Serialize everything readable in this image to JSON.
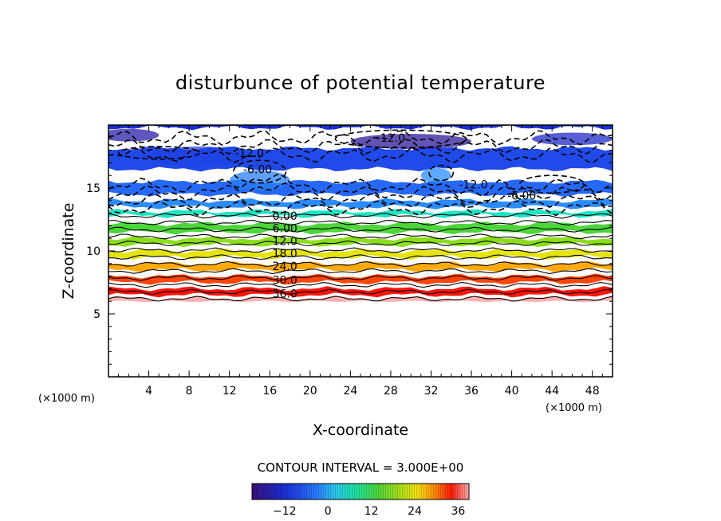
{
  "chart_data": {
    "type": "heatmap",
    "title": "disturbunce of potential temperature",
    "xlabel": "X-coordinate",
    "ylabel": "Z-coordinate",
    "x_unit": "(×1000 m)",
    "z_unit": "(×1000 m)",
    "xlim": [
      0,
      50
    ],
    "ylim": [
      0,
      20
    ],
    "x_ticks": [
      4,
      8,
      12,
      16,
      20,
      24,
      28,
      32,
      36,
      40,
      44,
      48
    ],
    "y_ticks": [
      5,
      10,
      15
    ],
    "contour_interval_label": "CONTOUR INTERVAL = 3.000E+00",
    "contour_interval": 3.0,
    "colorbar": {
      "min": -21,
      "max": 39,
      "ticks": [
        -12,
        0,
        12,
        24,
        36
      ]
    },
    "layers": [
      {
        "z": 6.0,
        "value": 39
      },
      {
        "z": 6.5,
        "value": 36
      },
      {
        "z": 7.5,
        "value": 30
      },
      {
        "z": 8.5,
        "value": 24
      },
      {
        "z": 9.5,
        "value": 18
      },
      {
        "z": 10.5,
        "value": 12
      },
      {
        "z": 11.5,
        "value": 6
      },
      {
        "z": 12.8,
        "value": 0
      },
      {
        "z": 13.5,
        "value": -6
      },
      {
        "z": 14.5,
        "value": -9
      },
      {
        "z": 16.5,
        "value": -12
      },
      {
        "z": 19.8,
        "value": -15
      }
    ],
    "contour_labels": [
      {
        "x": 17.5,
        "z": 12.8,
        "text": "0.00"
      },
      {
        "x": 17.5,
        "z": 11.8,
        "text": "6.00"
      },
      {
        "x": 17.5,
        "z": 10.8,
        "text": "12.0"
      },
      {
        "x": 17.5,
        "z": 9.8,
        "text": "18.0"
      },
      {
        "x": 17.5,
        "z": 8.8,
        "text": "24.0"
      },
      {
        "x": 17.5,
        "z": 7.7,
        "text": "30.0"
      },
      {
        "x": 17.5,
        "z": 6.6,
        "text": "36.0"
      },
      {
        "x": 14.8,
        "z": 16.5,
        "text": "-6.00"
      },
      {
        "x": 14.0,
        "z": 17.8,
        "text": "-12.0"
      },
      {
        "x": 28.0,
        "z": 19.0,
        "text": "-12.0"
      },
      {
        "x": 36.2,
        "z": 15.3,
        "text": "-12.0"
      },
      {
        "x": 41.0,
        "z": 14.4,
        "text": "-6.00"
      }
    ]
  }
}
